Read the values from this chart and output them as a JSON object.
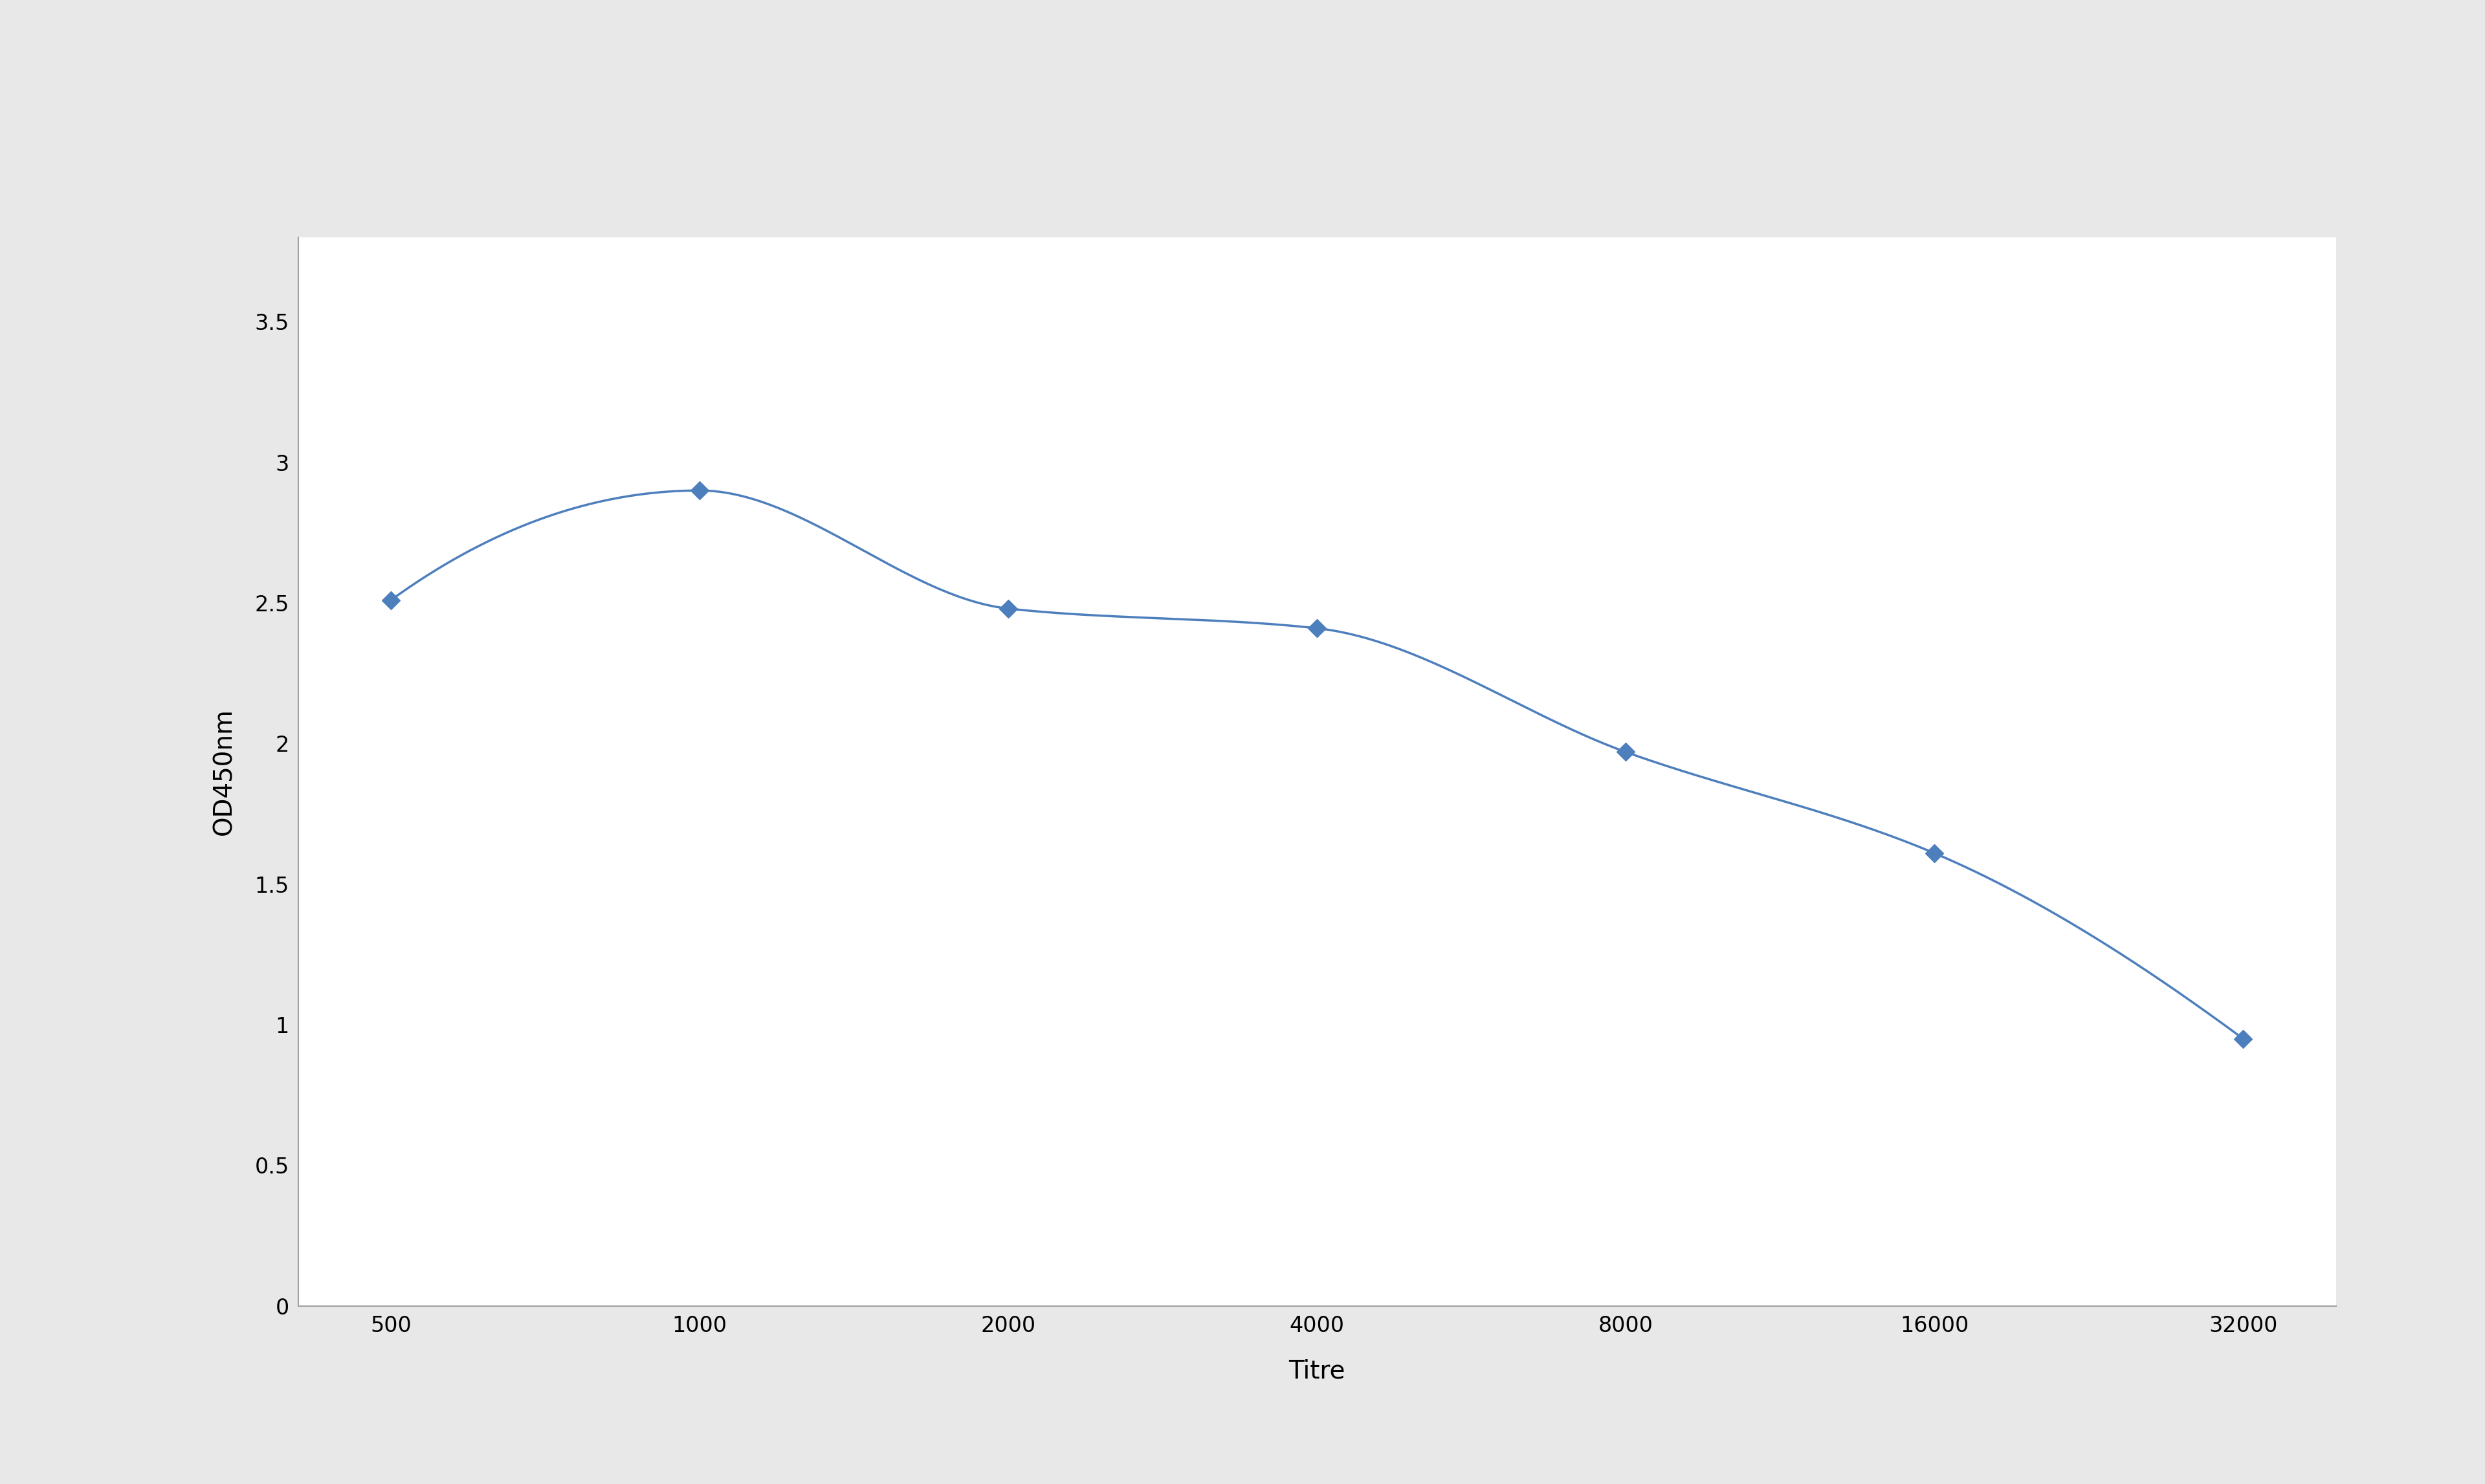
{
  "x_labels": [
    "500",
    "1000",
    "2000",
    "4000",
    "8000",
    "16000",
    "32000"
  ],
  "x_positions": [
    0,
    1,
    2,
    3,
    4,
    5,
    6
  ],
  "y_values": [
    2.51,
    2.9,
    2.48,
    2.41,
    1.97,
    1.61,
    0.95
  ],
  "xlabel": "Titre",
  "ylabel": "OD450nm",
  "ylim": [
    0,
    3.8
  ],
  "yticks": [
    0,
    0.5,
    1,
    1.5,
    2,
    2.5,
    3,
    3.5
  ],
  "line_color": "#4e7fbd",
  "marker": "D",
  "marker_size": 14,
  "marker_color": "#4e7fbd",
  "linewidth": 2.5,
  "background_color": "#e8e8e8",
  "plot_bg_color": "#ffffff",
  "xlabel_fontsize": 28,
  "ylabel_fontsize": 28,
  "tick_fontsize": 24,
  "spine_color": "#a0a0a0",
  "fig_width": 38.4,
  "fig_height": 22.94
}
